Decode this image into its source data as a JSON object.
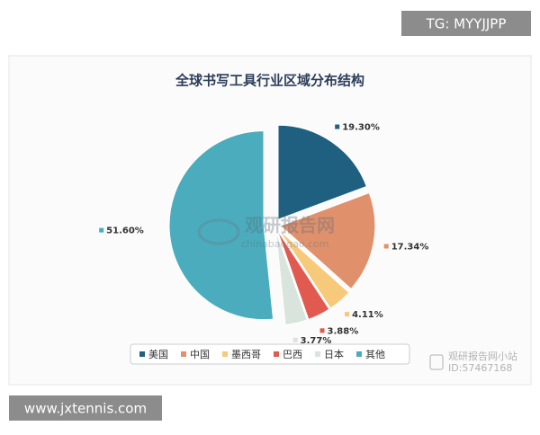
{
  "chart_data": {
    "type": "pie",
    "title": "全球书写工具行业区域分布结构",
    "categories": [
      "美国",
      "中国",
      "墨西哥",
      "巴西",
      "日本",
      "其他"
    ],
    "values": [
      19.3,
      17.34,
      4.11,
      3.88,
      3.77,
      51.6
    ],
    "value_labels": [
      "19.30%",
      "17.34%",
      "4.11%",
      "3.88%",
      "3.77%",
      "51.60%"
    ],
    "colors": [
      "#1f5f7f",
      "#e0916b",
      "#f7c97a",
      "#e05a50",
      "#d9e4dc",
      "#4aacbc"
    ],
    "legend": "bottom"
  },
  "watermark": {
    "logo": "观研报告网",
    "url": "chinabaogao.com",
    "account": "观研报告网小站",
    "id": "ID:57467168"
  },
  "overlay": {
    "tag": "TG: MYYJJPP",
    "site": "www.jxtennis.com"
  }
}
